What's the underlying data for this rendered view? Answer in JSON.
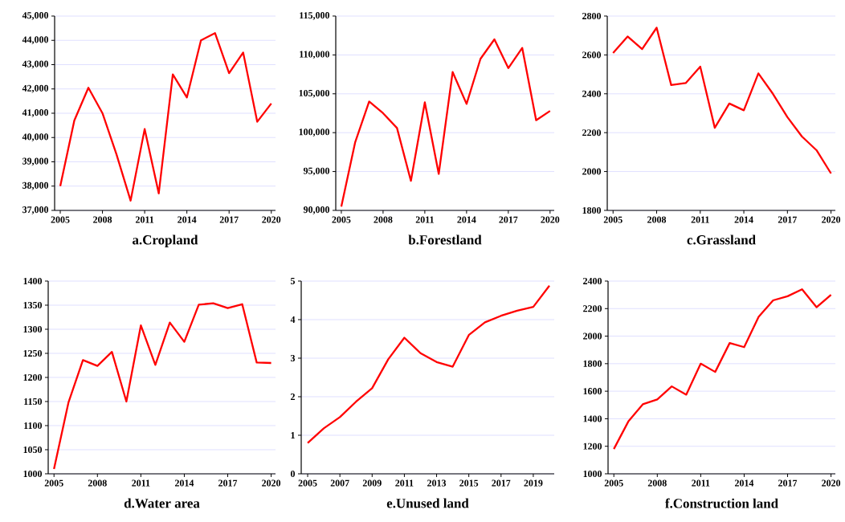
{
  "chart_data": [
    {
      "type": "line",
      "title": "a.Cropland",
      "x": [
        2005,
        2006,
        2007,
        2008,
        2009,
        2010,
        2011,
        2012,
        2013,
        2014,
        2015,
        2016,
        2017,
        2018,
        2019,
        2020
      ],
      "values": [
        38000,
        40700,
        42050,
        41000,
        39300,
        37400,
        40350,
        37700,
        42600,
        41650,
        44000,
        44300,
        42650,
        43500,
        40650,
        41400
      ],
      "color": "#ff0000",
      "xlim": [
        2004.6,
        2020.3
      ],
      "ylim": [
        37000,
        45000
      ],
      "xticks": [
        2005,
        2008,
        2011,
        2014,
        2017,
        2020
      ],
      "yticks": [
        {
          "value": 37000,
          "label": "37,000"
        },
        {
          "value": 38000,
          "label": "38,000"
        },
        {
          "value": 39000,
          "label": "39,000"
        },
        {
          "value": 40000,
          "label": "40,000"
        },
        {
          "value": 41000,
          "label": "41,000"
        },
        {
          "value": 42000,
          "label": "42,000"
        },
        {
          "value": 43000,
          "label": "43,000"
        },
        {
          "value": 44000,
          "label": "44,000"
        },
        {
          "value": 45000,
          "label": "45,000"
        }
      ],
      "grid": "y"
    },
    {
      "type": "line",
      "title": "b.Forestland",
      "x": [
        2005,
        2006,
        2007,
        2008,
        2009,
        2010,
        2011,
        2012,
        2013,
        2014,
        2015,
        2016,
        2017,
        2018,
        2019,
        2020
      ],
      "values": [
        90500,
        98800,
        104000,
        102500,
        100600,
        93800,
        103900,
        94700,
        107800,
        103700,
        109500,
        112000,
        108300,
        110900,
        101600,
        102800
      ],
      "color": "#ff0000",
      "xlim": [
        2004.6,
        2020.3
      ],
      "ylim": [
        90000,
        115000
      ],
      "xticks": [
        2005,
        2008,
        2011,
        2014,
        2017,
        2020
      ],
      "yticks": [
        {
          "value": 90000,
          "label": "90,000"
        },
        {
          "value": 95000,
          "label": "95,000"
        },
        {
          "value": 100000,
          "label": "100,000"
        },
        {
          "value": 105000,
          "label": "105,000"
        },
        {
          "value": 110000,
          "label": "110,000"
        },
        {
          "value": 115000,
          "label": "115,000"
        }
      ],
      "grid": "y"
    },
    {
      "type": "line",
      "title": "c.Grassland",
      "x": [
        2005,
        2006,
        2007,
        2008,
        2009,
        2010,
        2011,
        2012,
        2013,
        2014,
        2015,
        2016,
        2017,
        2018,
        2019,
        2020
      ],
      "values": [
        2610,
        2695,
        2630,
        2740,
        2445,
        2455,
        2540,
        2225,
        2350,
        2315,
        2505,
        2400,
        2280,
        2180,
        2110,
        1990
      ],
      "color": "#ff0000",
      "xlim": [
        2004.6,
        2020.3
      ],
      "ylim": [
        1800,
        2800
      ],
      "xticks": [
        2005,
        2008,
        2011,
        2014,
        2017,
        2020
      ],
      "yticks": [
        1800,
        2000,
        2200,
        2400,
        2600,
        2800
      ],
      "grid": "y"
    },
    {
      "type": "line",
      "title": "d.Water area",
      "x": [
        2005,
        2006,
        2007,
        2008,
        2009,
        2010,
        2011,
        2012,
        2013,
        2014,
        2015,
        2016,
        2017,
        2018,
        2019,
        2020
      ],
      "values": [
        1010,
        1148,
        1236,
        1224,
        1253,
        1150,
        1308,
        1226,
        1314,
        1274,
        1351,
        1354,
        1344,
        1352,
        1231,
        1230
      ],
      "color": "#ff0000",
      "xlim": [
        2004.6,
        2020.3
      ],
      "ylim": [
        1000,
        1400
      ],
      "xticks": [
        2005,
        2008,
        2011,
        2014,
        2017,
        2020
      ],
      "yticks": [
        1000,
        1050,
        1100,
        1150,
        1200,
        1250,
        1300,
        1350,
        1400
      ],
      "grid": "y"
    },
    {
      "type": "line",
      "title": "e.Unused land",
      "x": [
        2005,
        2006,
        2007,
        2008,
        2009,
        2010,
        2011,
        2012,
        2013,
        2014,
        2015,
        2016,
        2017,
        2018,
        2019,
        2020
      ],
      "values": [
        0.8,
        1.18,
        1.47,
        1.87,
        2.22,
        2.97,
        3.53,
        3.13,
        2.9,
        2.78,
        3.6,
        3.93,
        4.1,
        4.23,
        4.33,
        4.88
      ],
      "color": "#ff0000",
      "xlim": [
        2004.6,
        2020.3
      ],
      "ylim": [
        0,
        5
      ],
      "xticks": [
        2005,
        2007,
        2009,
        2011,
        2013,
        2015,
        2017,
        2019
      ],
      "yticks": [
        0,
        1,
        2,
        3,
        4,
        5
      ],
      "grid": "y"
    },
    {
      "type": "line",
      "title": "f.Construction land",
      "x": [
        2005,
        2006,
        2007,
        2008,
        2009,
        2010,
        2011,
        2012,
        2013,
        2014,
        2015,
        2016,
        2017,
        2018,
        2019,
        2020
      ],
      "values": [
        1180,
        1380,
        1505,
        1540,
        1635,
        1575,
        1800,
        1740,
        1950,
        1920,
        2140,
        2260,
        2290,
        2340,
        2210,
        2300
      ],
      "color": "#ff0000",
      "xlim": [
        2004.6,
        2020.3
      ],
      "ylim": [
        1000,
        2400
      ],
      "xticks": [
        2005,
        2008,
        2011,
        2014,
        2017,
        2020
      ],
      "yticks": [
        1000,
        1200,
        1400,
        1600,
        1800,
        2000,
        2200,
        2400
      ],
      "grid": "y"
    }
  ]
}
